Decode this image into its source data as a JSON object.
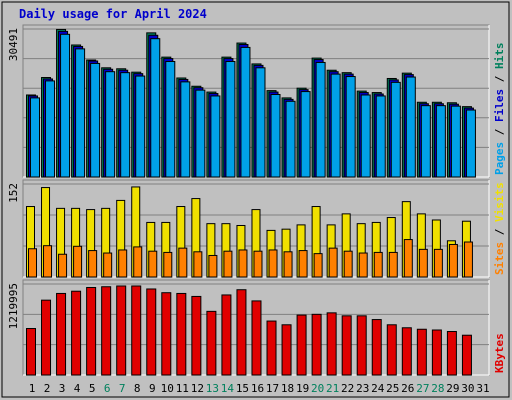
{
  "chart_data": {
    "type": "bar",
    "title": "Daily usage for April 2024",
    "categories": [
      "1",
      "2",
      "3",
      "4",
      "5",
      "6",
      "7",
      "8",
      "9",
      "10",
      "11",
      "12",
      "13",
      "14",
      "15",
      "16",
      "17",
      "18",
      "19",
      "20",
      "21",
      "22",
      "23",
      "24",
      "25",
      "26",
      "27",
      "28",
      "29",
      "30",
      "31"
    ],
    "weekend_days": [
      "6",
      "7",
      "13",
      "14",
      "20",
      "21",
      "27",
      "28"
    ],
    "colors": {
      "title": "#0000cc",
      "background": "#c0c0c0",
      "hits": "#00805c",
      "files": "#0000cc",
      "pages": "#00a0e8",
      "visits": "#f0e000",
      "sites": "#ff8000",
      "kbytes": "#e00000",
      "weekday_label": "#000000",
      "weekend_label": "#00805c"
    },
    "panels": [
      {
        "id": "top",
        "ytick": "30491",
        "ymax": 30491,
        "legend": [
          {
            "key": "pages",
            "label": "Pages"
          },
          {
            "key": "files",
            "label": "Files"
          },
          {
            "key": "hits",
            "label": "Hits"
          }
        ],
        "series": [
          {
            "name": "Hits",
            "key": "hits",
            "values": [
              17000,
              20600,
              30500,
              27300,
              24200,
              22600,
              22400,
              21700,
              29800,
              24800,
              20500,
              18800,
              17600,
              24800,
              27700,
              23400,
              17900,
              16400,
              18400,
              24600,
              22100,
              21600,
              17800,
              17500,
              20400,
              21500,
              15500,
              15500,
              15400,
              14600
            ]
          },
          {
            "name": "Files",
            "key": "files",
            "values": [
              16800,
              20300,
              30100,
              27000,
              24000,
              22300,
              22100,
              21400,
              29300,
              24500,
              20200,
              18500,
              17300,
              24500,
              27400,
              23100,
              17600,
              16100,
              18100,
              24300,
              21800,
              21300,
              17500,
              17200,
              20100,
              21200,
              15200,
              15200,
              15100,
              14300
            ]
          },
          {
            "name": "Pages",
            "key": "pages",
            "values": [
              16400,
              19900,
              29500,
              26500,
              23500,
              21800,
              21600,
              20900,
              28600,
              23900,
              19700,
              18000,
              16800,
              23900,
              26800,
              22600,
              17100,
              15700,
              17700,
              23700,
              21300,
              20800,
              17000,
              16800,
              19600,
              20700,
              14800,
              14800,
              14700,
              13900
            ]
          }
        ]
      },
      {
        "id": "middle",
        "ytick": "152",
        "ymax": 152,
        "legend": [
          {
            "key": "sites",
            "label": "Sites"
          },
          {
            "key": "visits",
            "label": "Visits"
          }
        ],
        "series": [
          {
            "name": "Visits",
            "key": "visits",
            "values": [
              116,
              147,
              113,
              113,
              111,
              113,
              126,
              148,
              90,
              90,
              116,
              129,
              88,
              88,
              85,
              111,
              77,
              79,
              86,
              116,
              86,
              104,
              88,
              90,
              98,
              124,
              104,
              94,
              60,
              92
            ]
          },
          {
            "name": "Sites",
            "key": "sites",
            "values": [
              47,
              52,
              38,
              51,
              44,
              40,
              45,
              50,
              43,
              41,
              48,
              42,
              36,
              43,
              45,
              43,
              45,
              42,
              44,
              39,
              48,
              43,
              40,
              41,
              41,
              62,
              46,
              46,
              54,
              58
            ]
          }
        ]
      },
      {
        "id": "bottom",
        "ytick": "1219995",
        "ymax": 1219995,
        "legend": [
          {
            "key": "kbytes",
            "label": "KBytes"
          }
        ],
        "series": [
          {
            "name": "KBytes",
            "key": "kbytes",
            "values": [
              630000,
              1010000,
              1100000,
              1130000,
              1180000,
              1190000,
              1200000,
              1200000,
              1160000,
              1110000,
              1100000,
              1060000,
              860000,
              1080000,
              1150000,
              1000000,
              730000,
              680000,
              810000,
              820000,
              840000,
              800000,
              800000,
              750000,
              680000,
              640000,
              620000,
              610000,
              590000,
              540000
            ]
          }
        ]
      }
    ]
  }
}
